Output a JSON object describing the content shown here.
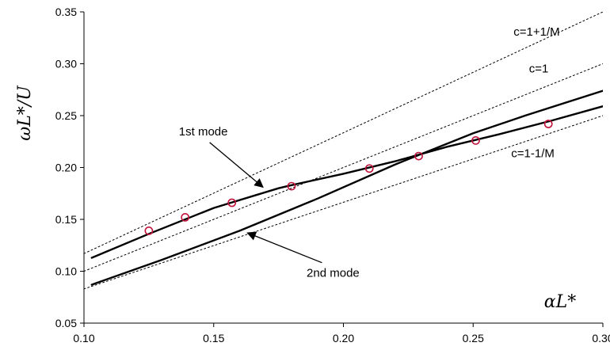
{
  "chart_data": {
    "type": "line",
    "xlabel": "αL*",
    "ylabel": "ωL*/U",
    "xlim": [
      0.1,
      0.3
    ],
    "ylim": [
      0.05,
      0.35
    ],
    "xticks": [
      "0.10",
      "0.15",
      "0.20",
      "0.25",
      "0.30"
    ],
    "yticks": [
      "0.05",
      "0.10",
      "0.15",
      "0.20",
      "0.25",
      "0.30",
      "0.35"
    ],
    "grid": false,
    "series": [
      {
        "style": "solid",
        "x": [
          0.103,
          0.125,
          0.15,
          0.175,
          0.18,
          0.2,
          0.22,
          0.24,
          0.26,
          0.28,
          0.3
        ],
        "y": [
          0.113,
          0.136,
          0.161,
          0.18,
          0.183,
          0.194,
          0.206,
          0.22,
          0.232,
          0.245,
          0.259
        ]
      },
      {
        "style": "solid",
        "x": [
          0.103,
          0.13,
          0.16,
          0.19,
          0.22,
          0.25,
          0.27,
          0.3
        ],
        "y": [
          0.087,
          0.111,
          0.139,
          0.17,
          0.203,
          0.233,
          0.25,
          0.274
        ]
      },
      {
        "style": "dotted",
        "x": [
          0.1,
          0.3
        ],
        "y": [
          0.117,
          0.35
        ]
      },
      {
        "style": "dotted",
        "x": [
          0.1,
          0.3
        ],
        "y": [
          0.1,
          0.3
        ]
      },
      {
        "style": "dotted",
        "x": [
          0.1,
          0.3
        ],
        "y": [
          0.083,
          0.25
        ]
      },
      {
        "style": "markers",
        "marker": "open-circle",
        "color": "#c0143c",
        "x": [
          0.125,
          0.139,
          0.157,
          0.18,
          0.21,
          0.229,
          0.251,
          0.279
        ],
        "y": [
          0.139,
          0.152,
          0.166,
          0.182,
          0.199,
          0.211,
          0.226,
          0.242
        ]
      }
    ],
    "annotations": [
      {
        "text": "c=1+1/M",
        "x": 0.2745,
        "y": 0.327
      },
      {
        "text": "c=1",
        "x": 0.2753,
        "y": 0.2915
      },
      {
        "text": "c=1-1/M",
        "x": 0.273,
        "y": 0.21
      },
      {
        "text": "1st mode",
        "x": 0.146,
        "y": 0.231,
        "arrow_to": [
          0.169,
          0.181
        ]
      },
      {
        "text": "2nd mode",
        "x": 0.196,
        "y": 0.0945,
        "arrow_to": [
          0.163,
          0.137
        ]
      }
    ]
  }
}
